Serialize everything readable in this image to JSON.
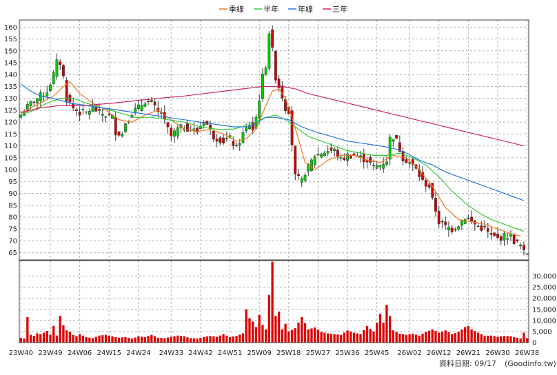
{
  "colors": {
    "up": "#00cc00",
    "down": "#cc0000",
    "volume": "#dd0000",
    "grid": "#b0b0b0",
    "frame": "#404040",
    "seasonal_line": "#ee7722",
    "half_year_line": "#33cc33",
    "year_line": "#2277dd",
    "three_year_line": "#cc2266"
  },
  "legend": [
    {
      "key": "seasonal",
      "label": "季線",
      "color": "#ee7722"
    },
    {
      "key": "half_year",
      "label": "半年",
      "color": "#33cc33"
    },
    {
      "key": "year",
      "label": "年線",
      "color": "#2277dd"
    },
    {
      "key": "three_year",
      "label": "三年",
      "color": "#cc2266"
    }
  ],
  "footer": {
    "date_label": "資料日期: 09/17",
    "source": "(Goodinfo.tw)"
  },
  "chart_data": {
    "type": "candlestick",
    "price_axis": {
      "ylim": [
        62,
        163
      ],
      "ticks": [
        65,
        70,
        75,
        80,
        85,
        90,
        95,
        100,
        105,
        110,
        115,
        120,
        125,
        130,
        135,
        140,
        145,
        150,
        155,
        160
      ]
    },
    "volume_axis": {
      "ylim": [
        0,
        37000
      ],
      "tick_labels": [
        "0",
        "5,000",
        "10,000",
        "15,000",
        "20,000",
        "25,000",
        "30,000"
      ],
      "tick_values": [
        0,
        5000,
        10000,
        15000,
        20000,
        25000,
        30000
      ]
    },
    "x_tick_labels": [
      "23W40",
      "23W49",
      "24W06",
      "24W15",
      "24W24",
      "24W33",
      "24W42",
      "24W51",
      "25W09",
      "25W18",
      "25W27",
      "25W36",
      "25W45",
      "26W02",
      "26W12",
      "26W21",
      "26W30",
      "26W38"
    ],
    "week_count": 156,
    "close_anchors": [
      [
        0,
        123
      ],
      [
        3,
        128
      ],
      [
        6,
        131
      ],
      [
        8,
        133
      ],
      [
        10,
        140
      ],
      [
        11,
        145
      ],
      [
        12,
        145
      ],
      [
        13,
        139
      ],
      [
        14,
        130
      ],
      [
        16,
        126
      ],
      [
        18,
        124
      ],
      [
        20,
        124
      ],
      [
        22,
        126
      ],
      [
        24,
        124
      ],
      [
        26,
        123
      ],
      [
        28,
        122
      ],
      [
        29,
        116
      ],
      [
        31,
        115
      ],
      [
        32,
        120
      ],
      [
        34,
        124
      ],
      [
        36,
        126
      ],
      [
        38,
        129
      ],
      [
        40,
        128
      ],
      [
        42,
        124
      ],
      [
        43,
        124
      ],
      [
        44,
        120
      ],
      [
        46,
        114
      ],
      [
        48,
        117
      ],
      [
        50,
        118
      ],
      [
        52,
        117
      ],
      [
        54,
        116
      ],
      [
        56,
        121
      ],
      [
        57,
        119
      ],
      [
        59,
        114
      ],
      [
        62,
        112
      ],
      [
        64,
        113
      ],
      [
        66,
        109
      ],
      [
        68,
        115
      ],
      [
        70,
        119
      ],
      [
        71,
        117
      ],
      [
        72,
        122
      ],
      [
        73,
        130
      ],
      [
        74,
        139
      ],
      [
        75,
        144
      ],
      [
        76,
        158
      ],
      [
        77,
        150
      ],
      [
        78,
        139
      ],
      [
        80,
        131
      ],
      [
        81,
        126
      ],
      [
        82,
        125
      ],
      [
        84,
        97
      ],
      [
        86,
        95
      ],
      [
        87,
        99
      ],
      [
        88,
        101
      ],
      [
        90,
        106
      ],
      [
        92,
        107
      ],
      [
        94,
        108
      ],
      [
        96,
        108
      ],
      [
        98,
        104
      ],
      [
        100,
        106
      ],
      [
        102,
        106
      ],
      [
        104,
        105
      ],
      [
        106,
        104
      ],
      [
        108,
        101
      ],
      [
        110,
        102
      ],
      [
        112,
        104
      ],
      [
        113,
        113
      ],
      [
        114,
        114
      ],
      [
        115,
        112
      ],
      [
        117,
        105
      ],
      [
        119,
        103
      ],
      [
        121,
        100
      ],
      [
        123,
        95
      ],
      [
        125,
        93
      ],
      [
        126,
        87
      ],
      [
        127,
        83
      ],
      [
        128,
        78
      ],
      [
        130,
        76
      ],
      [
        132,
        75
      ],
      [
        134,
        77
      ],
      [
        136,
        80
      ],
      [
        138,
        78
      ],
      [
        140,
        76
      ],
      [
        142,
        75
      ],
      [
        144,
        72
      ],
      [
        146,
        71
      ],
      [
        148,
        72
      ],
      [
        150,
        72
      ],
      [
        151,
        70
      ],
      [
        152,
        69
      ],
      [
        153,
        68
      ],
      [
        154,
        65
      ]
    ],
    "volume_anchors": [
      [
        0,
        2200
      ],
      [
        1,
        1800
      ],
      [
        2,
        11500
      ],
      [
        3,
        3500
      ],
      [
        4,
        3000
      ],
      [
        5,
        4200
      ],
      [
        6,
        3800
      ],
      [
        7,
        4500
      ],
      [
        8,
        5200
      ],
      [
        9,
        3600
      ],
      [
        10,
        7500
      ],
      [
        11,
        3200
      ],
      [
        12,
        12000
      ],
      [
        13,
        7800
      ],
      [
        14,
        5500
      ],
      [
        15,
        4800
      ],
      [
        16,
        3500
      ],
      [
        17,
        2900
      ],
      [
        18,
        3800
      ],
      [
        20,
        2500
      ],
      [
        22,
        2000
      ],
      [
        24,
        3200
      ],
      [
        26,
        3500
      ],
      [
        28,
        2800
      ],
      [
        30,
        2200
      ],
      [
        32,
        2500
      ],
      [
        34,
        1800
      ],
      [
        36,
        2800
      ],
      [
        38,
        2500
      ],
      [
        40,
        3500
      ],
      [
        42,
        2200
      ],
      [
        44,
        2000
      ],
      [
        46,
        2600
      ],
      [
        48,
        3200
      ],
      [
        50,
        2800
      ],
      [
        52,
        2000
      ],
      [
        54,
        1800
      ],
      [
        56,
        2500
      ],
      [
        58,
        3000
      ],
      [
        60,
        2600
      ],
      [
        62,
        3800
      ],
      [
        64,
        2500
      ],
      [
        66,
        3000
      ],
      [
        68,
        4200
      ],
      [
        69,
        15000
      ],
      [
        70,
        11000
      ],
      [
        71,
        9500
      ],
      [
        72,
        7000
      ],
      [
        73,
        12500
      ],
      [
        74,
        8000
      ],
      [
        75,
        6000
      ],
      [
        76,
        21500
      ],
      [
        77,
        36500
      ],
      [
        78,
        12000
      ],
      [
        79,
        14000
      ],
      [
        80,
        6000
      ],
      [
        81,
        8500
      ],
      [
        82,
        5000
      ],
      [
        84,
        6500
      ],
      [
        86,
        11500
      ],
      [
        88,
        6000
      ],
      [
        90,
        6800
      ],
      [
        92,
        4800
      ],
      [
        94,
        4200
      ],
      [
        96,
        3800
      ],
      [
        98,
        3500
      ],
      [
        100,
        5500
      ],
      [
        102,
        4500
      ],
      [
        104,
        3800
      ],
      [
        106,
        7500
      ],
      [
        108,
        5000
      ],
      [
        110,
        13000
      ],
      [
        111,
        9000
      ],
      [
        112,
        17000
      ],
      [
        113,
        12000
      ],
      [
        114,
        5500
      ],
      [
        116,
        4000
      ],
      [
        118,
        3500
      ],
      [
        120,
        4000
      ],
      [
        122,
        3200
      ],
      [
        124,
        4800
      ],
      [
        126,
        6000
      ],
      [
        128,
        4500
      ],
      [
        130,
        5500
      ],
      [
        132,
        3800
      ],
      [
        134,
        4800
      ],
      [
        136,
        7000
      ],
      [
        137,
        7500
      ],
      [
        138,
        6000
      ],
      [
        140,
        4500
      ],
      [
        142,
        3000
      ],
      [
        144,
        3200
      ],
      [
        146,
        2600
      ],
      [
        148,
        3000
      ],
      [
        150,
        2800
      ],
      [
        152,
        2200
      ],
      [
        153,
        1800
      ],
      [
        154,
        4500
      ],
      [
        155,
        2000
      ]
    ],
    "moving_averages": {
      "seasonal": [
        [
          0,
          124
        ],
        [
          3,
          126
        ],
        [
          6,
          128
        ],
        [
          10,
          131
        ],
        [
          13,
          135
        ],
        [
          15,
          137
        ],
        [
          18,
          132
        ],
        [
          22,
          128
        ],
        [
          26,
          125
        ],
        [
          30,
          121
        ],
        [
          34,
          120
        ],
        [
          38,
          123
        ],
        [
          42,
          125
        ],
        [
          46,
          121
        ],
        [
          50,
          117
        ],
        [
          54,
          116
        ],
        [
          58,
          117
        ],
        [
          62,
          115
        ],
        [
          66,
          112
        ],
        [
          69,
          113
        ],
        [
          72,
          117
        ],
        [
          75,
          127
        ],
        [
          77,
          133
        ],
        [
          79,
          134
        ],
        [
          81,
          130
        ],
        [
          83,
          122
        ],
        [
          85,
          113
        ],
        [
          87,
          103
        ],
        [
          90,
          100
        ],
        [
          94,
          104
        ],
        [
          98,
          106
        ],
        [
          102,
          106
        ],
        [
          106,
          104
        ],
        [
          110,
          103
        ],
        [
          114,
          106
        ],
        [
          118,
          105
        ],
        [
          122,
          100
        ],
        [
          126,
          93
        ],
        [
          130,
          84
        ],
        [
          134,
          79
        ],
        [
          138,
          78
        ],
        [
          142,
          77
        ],
        [
          146,
          75
        ],
        [
          150,
          73
        ],
        [
          153,
          72
        ]
      ],
      "half_year": [
        [
          0,
          123
        ],
        [
          4,
          125
        ],
        [
          8,
          128
        ],
        [
          12,
          130
        ],
        [
          16,
          130
        ],
        [
          20,
          128
        ],
        [
          25,
          126
        ],
        [
          30,
          124
        ],
        [
          35,
          122
        ],
        [
          40,
          122
        ],
        [
          45,
          121
        ],
        [
          50,
          120
        ],
        [
          55,
          118
        ],
        [
          60,
          117
        ],
        [
          65,
          117
        ],
        [
          70,
          119
        ],
        [
          75,
          122
        ],
        [
          78,
          123
        ],
        [
          81,
          121
        ],
        [
          84,
          118
        ],
        [
          88,
          114
        ],
        [
          92,
          112
        ],
        [
          96,
          110
        ],
        [
          100,
          108
        ],
        [
          104,
          107
        ],
        [
          108,
          106
        ],
        [
          112,
          106
        ],
        [
          116,
          107
        ],
        [
          120,
          105
        ],
        [
          124,
          102
        ],
        [
          128,
          97
        ],
        [
          132,
          91
        ],
        [
          136,
          86
        ],
        [
          140,
          82
        ],
        [
          144,
          79
        ],
        [
          148,
          77
        ],
        [
          152,
          75
        ],
        [
          154,
          74
        ]
      ],
      "year": [
        [
          0,
          136
        ],
        [
          3,
          133
        ],
        [
          6,
          131
        ],
        [
          10,
          130
        ],
        [
          15,
          128
        ],
        [
          20,
          127
        ],
        [
          25,
          126
        ],
        [
          30,
          125
        ],
        [
          35,
          124
        ],
        [
          40,
          123
        ],
        [
          45,
          122
        ],
        [
          50,
          121
        ],
        [
          55,
          120
        ],
        [
          60,
          119
        ],
        [
          65,
          118
        ],
        [
          70,
          118
        ],
        [
          75,
          122
        ],
        [
          78,
          122
        ],
        [
          82,
          121
        ],
        [
          86,
          118
        ],
        [
          90,
          116
        ],
        [
          95,
          114
        ],
        [
          100,
          112
        ],
        [
          105,
          111
        ],
        [
          110,
          110
        ],
        [
          114,
          109
        ],
        [
          118,
          107
        ],
        [
          122,
          104
        ],
        [
          126,
          102
        ],
        [
          130,
          99
        ],
        [
          134,
          97
        ],
        [
          138,
          95
        ],
        [
          142,
          93
        ],
        [
          146,
          91
        ],
        [
          150,
          89
        ],
        [
          154,
          87
        ]
      ],
      "three_year": [
        [
          0,
          124
        ],
        [
          6,
          126
        ],
        [
          12,
          127
        ],
        [
          20,
          127
        ],
        [
          28,
          128
        ],
        [
          35,
          129
        ],
        [
          42,
          130
        ],
        [
          50,
          131
        ],
        [
          56,
          132
        ],
        [
          62,
          133
        ],
        [
          68,
          134
        ],
        [
          74,
          135
        ],
        [
          80,
          135
        ],
        [
          84,
          134
        ],
        [
          88,
          132
        ],
        [
          94,
          130
        ],
        [
          100,
          128
        ],
        [
          106,
          126
        ],
        [
          112,
          124
        ],
        [
          118,
          122
        ],
        [
          124,
          120
        ],
        [
          130,
          118
        ],
        [
          136,
          116
        ],
        [
          142,
          114
        ],
        [
          148,
          112
        ],
        [
          154,
          110
        ]
      ]
    }
  }
}
